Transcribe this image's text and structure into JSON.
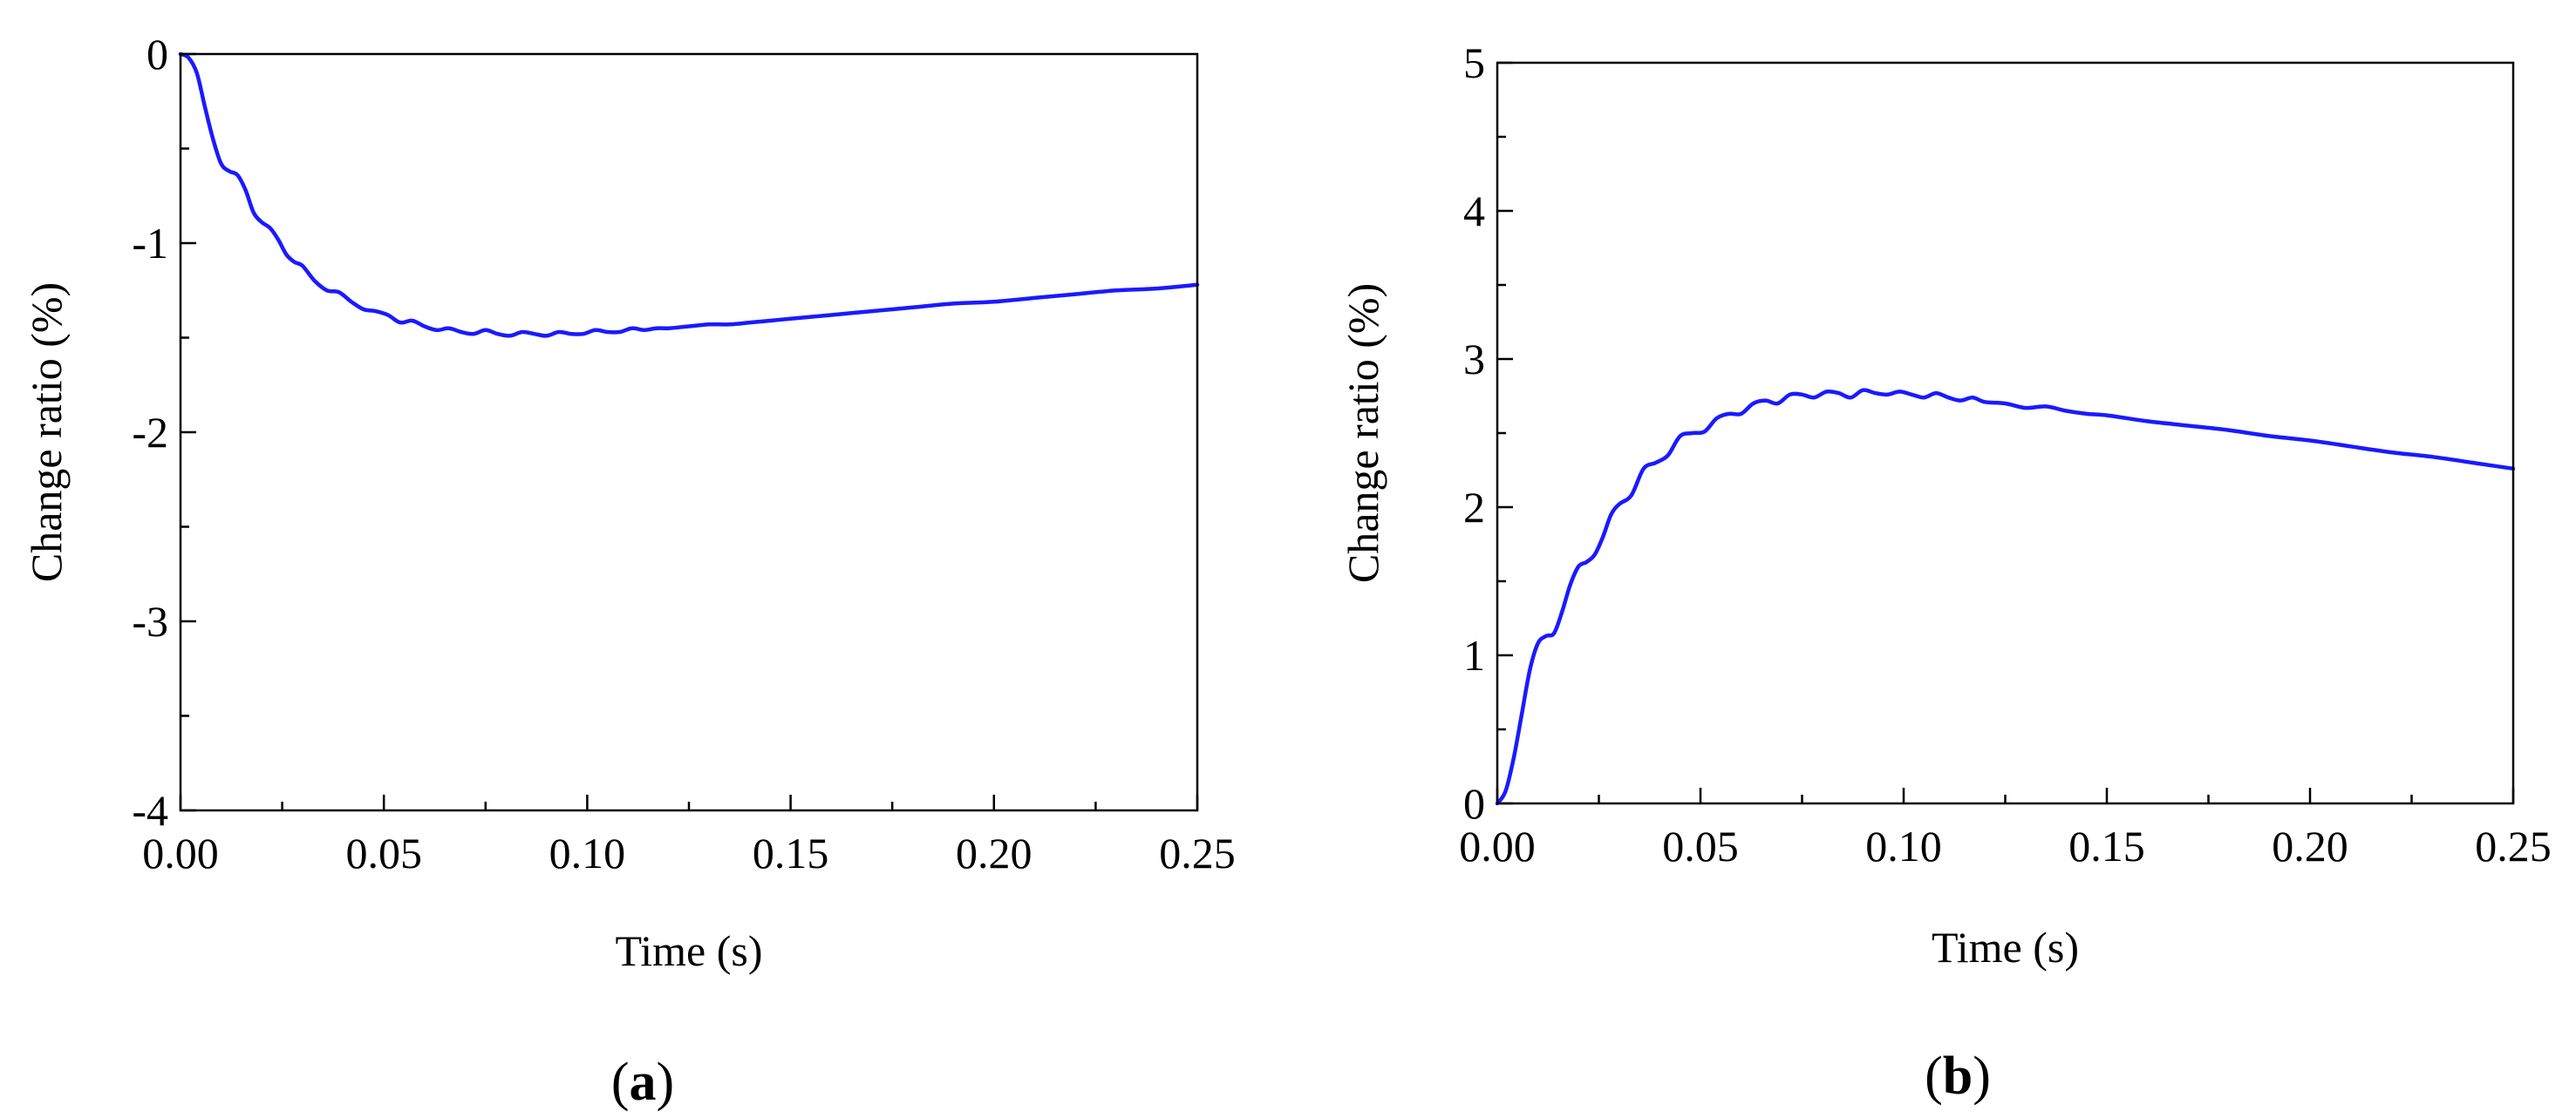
{
  "chart_data": [
    {
      "type": "line",
      "panel_label": "a",
      "xlabel": "Time (s)",
      "ylabel": "Change ratio (%)",
      "xlim": [
        0,
        0.25
      ],
      "ylim": [
        -4,
        0
      ],
      "xticks": [
        0.0,
        0.05,
        0.1,
        0.15,
        0.2,
        0.25
      ],
      "xtick_labels": [
        "0.00",
        "0.05",
        "0.10",
        "0.15",
        "0.20",
        "0.25"
      ],
      "yticks": [
        0,
        -1,
        -2,
        -3,
        -4
      ],
      "ytick_labels": [
        "0",
        "-1",
        "-2",
        "-3",
        "-4"
      ],
      "grid": false,
      "line_color": "#1a1aff",
      "series": [
        {
          "x": [
            0.0,
            0.002,
            0.004,
            0.006,
            0.008,
            0.01,
            0.012,
            0.014,
            0.016,
            0.018,
            0.02,
            0.022,
            0.024,
            0.026,
            0.028,
            0.03,
            0.033,
            0.036,
            0.039,
            0.042,
            0.045,
            0.048,
            0.051,
            0.054,
            0.057,
            0.06,
            0.063,
            0.066,
            0.069,
            0.072,
            0.075,
            0.078,
            0.081,
            0.084,
            0.087,
            0.09,
            0.093,
            0.096,
            0.099,
            0.102,
            0.105,
            0.108,
            0.111,
            0.114,
            0.117,
            0.12,
            0.125,
            0.13,
            0.135,
            0.14,
            0.145,
            0.15,
            0.16,
            0.17,
            0.18,
            0.19,
            0.2,
            0.21,
            0.22,
            0.23,
            0.24,
            0.25
          ],
          "y": [
            0.0,
            -0.02,
            -0.1,
            -0.28,
            -0.45,
            -0.58,
            -0.62,
            -0.64,
            -0.72,
            -0.84,
            -0.89,
            -0.92,
            -0.98,
            -1.06,
            -1.1,
            -1.12,
            -1.2,
            -1.25,
            -1.26,
            -1.31,
            -1.35,
            -1.36,
            -1.38,
            -1.42,
            -1.41,
            -1.44,
            -1.46,
            -1.45,
            -1.47,
            -1.48,
            -1.46,
            -1.48,
            -1.49,
            -1.47,
            -1.48,
            -1.49,
            -1.47,
            -1.48,
            -1.48,
            -1.46,
            -1.47,
            -1.47,
            -1.45,
            -1.46,
            -1.45,
            -1.45,
            -1.44,
            -1.43,
            -1.43,
            -1.42,
            -1.41,
            -1.4,
            -1.38,
            -1.36,
            -1.34,
            -1.32,
            -1.31,
            -1.29,
            -1.27,
            -1.25,
            -1.24,
            -1.22
          ]
        }
      ]
    },
    {
      "type": "line",
      "panel_label": "b",
      "xlabel": "Time (s)",
      "ylabel": "Change ratio (%)",
      "xlim": [
        0,
        0.25
      ],
      "ylim": [
        0,
        5
      ],
      "xticks": [
        0.0,
        0.05,
        0.1,
        0.15,
        0.2,
        0.25
      ],
      "xtick_labels": [
        "0.00",
        "0.05",
        "0.10",
        "0.15",
        "0.20",
        "0.25"
      ],
      "yticks": [
        0,
        1,
        2,
        3,
        4,
        5
      ],
      "ytick_labels": [
        "0",
        "1",
        "2",
        "3",
        "4",
        "5"
      ],
      "grid": false,
      "line_color": "#1a1aff",
      "series": [
        {
          "x": [
            0.0,
            0.002,
            0.004,
            0.006,
            0.008,
            0.01,
            0.012,
            0.014,
            0.016,
            0.018,
            0.02,
            0.022,
            0.024,
            0.026,
            0.028,
            0.03,
            0.033,
            0.036,
            0.039,
            0.042,
            0.045,
            0.048,
            0.051,
            0.054,
            0.057,
            0.06,
            0.063,
            0.066,
            0.069,
            0.072,
            0.075,
            0.078,
            0.081,
            0.084,
            0.087,
            0.09,
            0.093,
            0.096,
            0.099,
            0.102,
            0.105,
            0.108,
            0.111,
            0.114,
            0.117,
            0.12,
            0.125,
            0.13,
            0.135,
            0.14,
            0.145,
            0.15,
            0.16,
            0.17,
            0.18,
            0.19,
            0.2,
            0.21,
            0.22,
            0.23,
            0.24,
            0.25
          ],
          "y": [
            0.0,
            0.08,
            0.3,
            0.6,
            0.9,
            1.08,
            1.13,
            1.15,
            1.3,
            1.48,
            1.6,
            1.63,
            1.68,
            1.8,
            1.95,
            2.02,
            2.08,
            2.26,
            2.3,
            2.35,
            2.48,
            2.5,
            2.51,
            2.6,
            2.63,
            2.63,
            2.7,
            2.72,
            2.7,
            2.76,
            2.76,
            2.74,
            2.78,
            2.77,
            2.74,
            2.79,
            2.77,
            2.76,
            2.78,
            2.76,
            2.74,
            2.77,
            2.74,
            2.72,
            2.74,
            2.71,
            2.7,
            2.67,
            2.68,
            2.65,
            2.63,
            2.62,
            2.58,
            2.55,
            2.52,
            2.48,
            2.45,
            2.41,
            2.37,
            2.34,
            2.3,
            2.26
          ]
        }
      ]
    }
  ]
}
